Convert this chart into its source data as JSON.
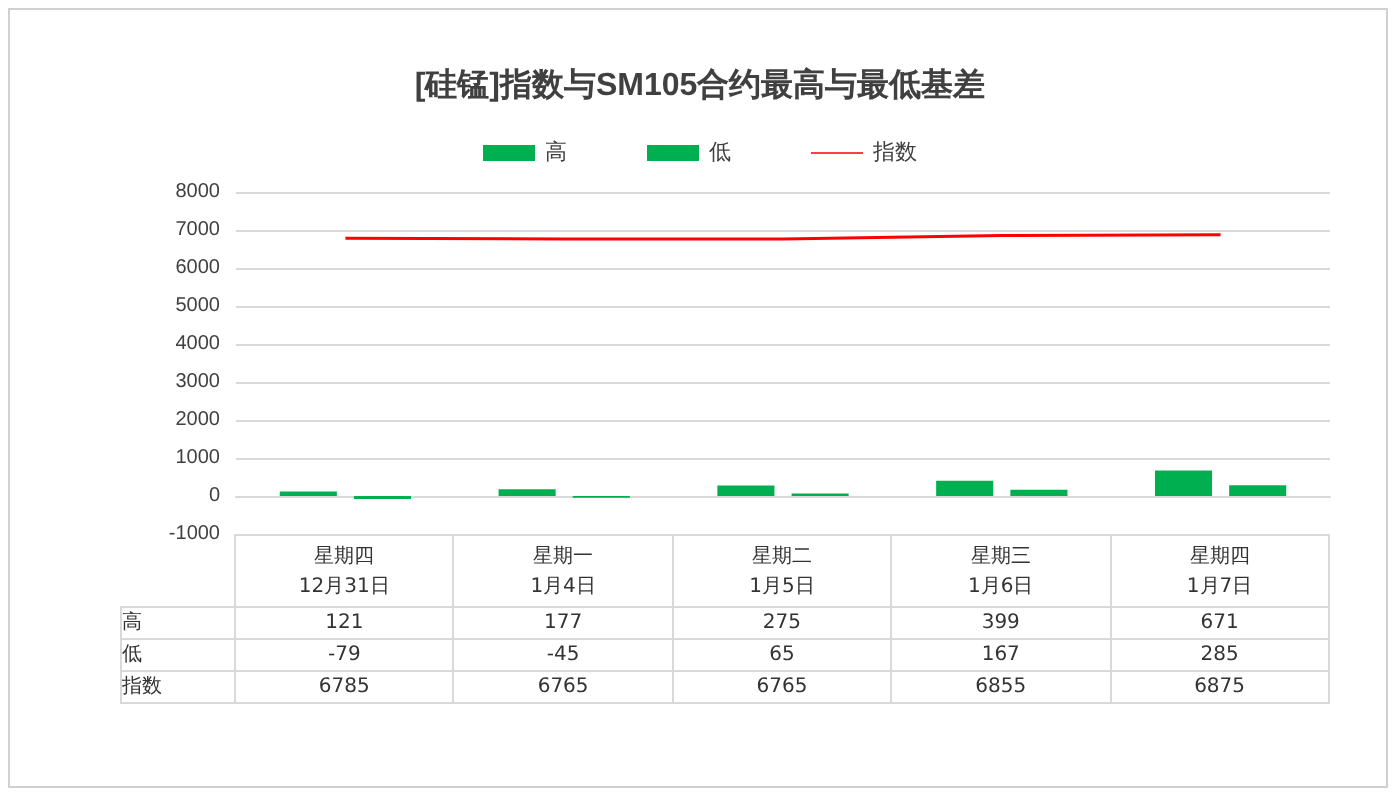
{
  "chart_data": {
    "type": "bar",
    "title": "[硅锰]指数与SM105合约最高与最低基差",
    "categories": [
      "星期四\n12月31日",
      "星期一\n1月4日",
      "星期二\n1月5日",
      "星期三\n1月6日",
      "星期四\n1月7日"
    ],
    "series": [
      {
        "name": "高",
        "color": "#00b050",
        "values": [
          121,
          177,
          275,
          399,
          671
        ]
      },
      {
        "name": "低",
        "color": "#00b050",
        "values": [
          -79,
          -45,
          65,
          167,
          285
        ]
      },
      {
        "name": "指数",
        "type": "line",
        "color": "#ff0000",
        "values": [
          6785,
          6765,
          6765,
          6855,
          6875
        ]
      }
    ],
    "ylim": [
      -1000,
      8000
    ],
    "yticks": [
      -1000,
      0,
      1000,
      2000,
      3000,
      4000,
      5000,
      6000,
      7000,
      8000
    ],
    "grid": "y",
    "legend": "top",
    "data_labels": true,
    "marker": "none"
  }
}
